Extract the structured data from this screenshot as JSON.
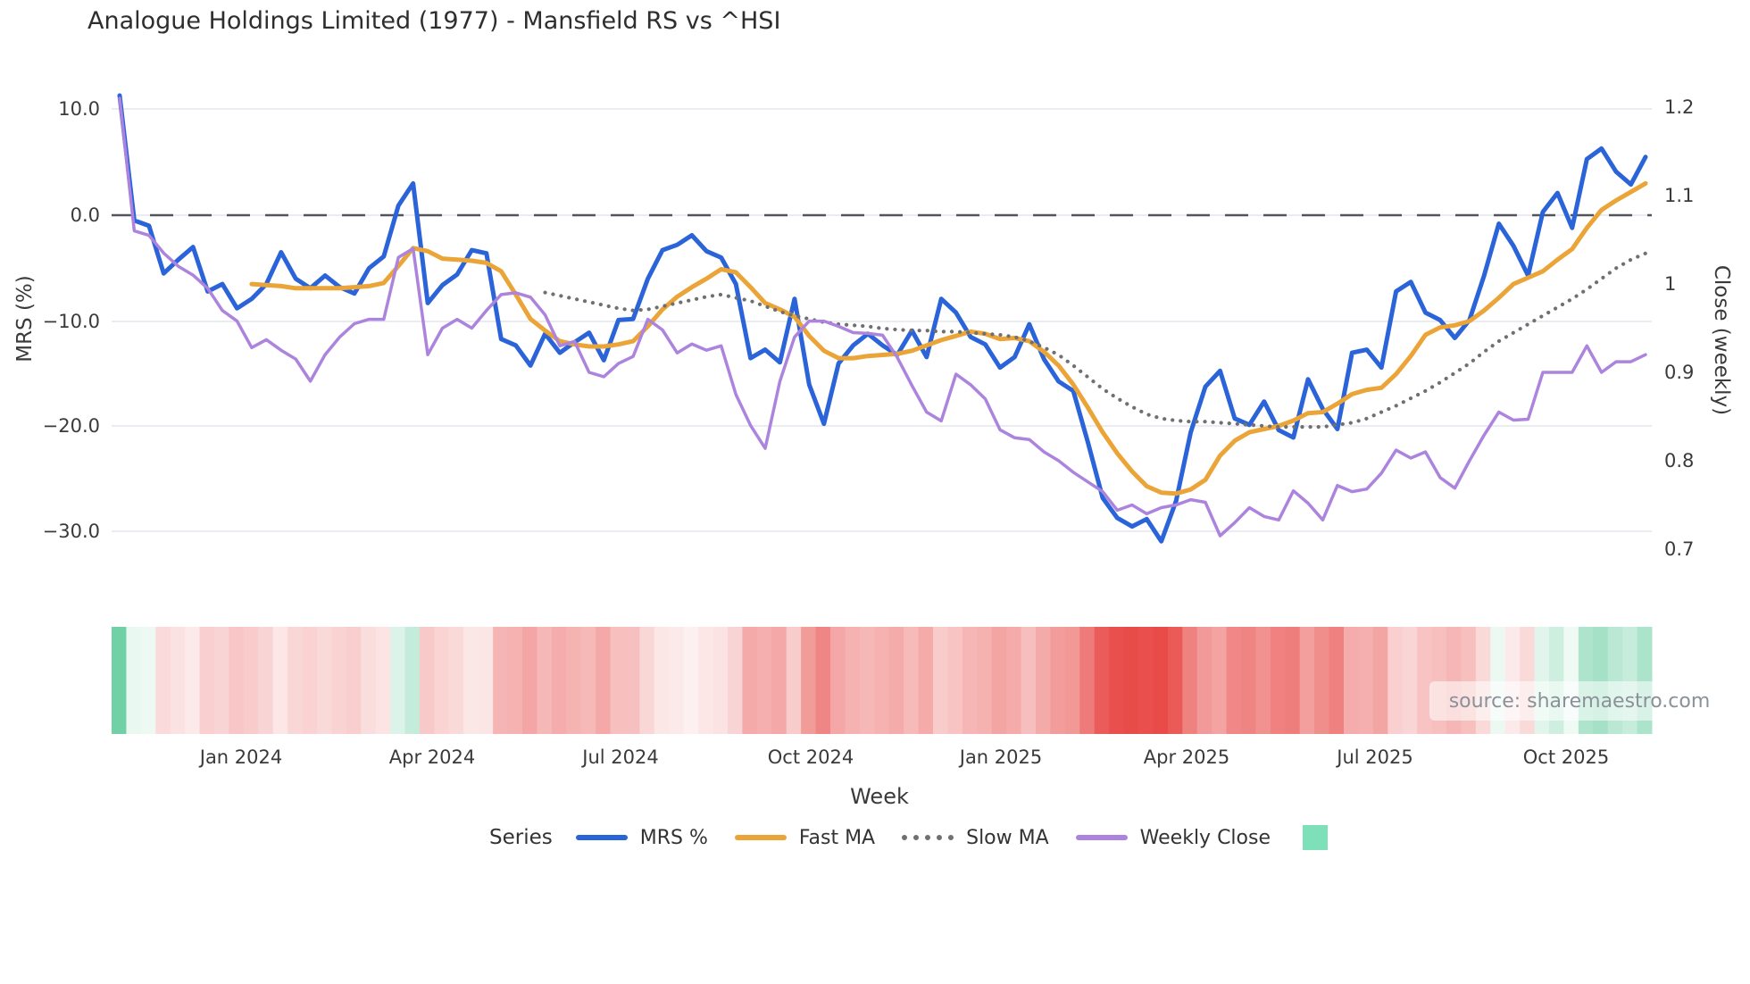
{
  "source": {
    "text": "source: sharemaestro.com"
  },
  "legend": {
    "title": "Series",
    "items": [
      {
        "label": "MRS %",
        "color": "#2b63d8",
        "style": "solid"
      },
      {
        "label": "Fast MA",
        "color": "#eba437",
        "style": "solid"
      },
      {
        "label": "Slow MA",
        "color": "#707070",
        "style": "dotted"
      },
      {
        "label": "Weekly Close",
        "color": "#ac84de",
        "style": "solid"
      }
    ],
    "heatmap_swatch_color": "#7de0b8"
  },
  "chart_data": {
    "type": "line",
    "title": "Analogue Holdings Limited (1977) - Mansfield RS vs ^HSI",
    "x_axis": {
      "label": "Week",
      "tick_labels": [
        "Jan 2024",
        "Apr 2024",
        "Jul 2024",
        "Oct 2024",
        "Jan 2025",
        "Apr 2025",
        "Jul 2025",
        "Oct 2025"
      ]
    },
    "y_left": {
      "label": "MRS (%)",
      "tick_labels": [
        "10.0",
        "0.0",
        "−10.0",
        "−20.0",
        "−30.0"
      ],
      "tick_values": [
        10,
        0,
        -10,
        -20,
        -30
      ],
      "range": [
        -33,
        12.5
      ],
      "zero_line": 0
    },
    "y_right": {
      "label": "Close (weekly)",
      "tick_labels": [
        "1.2",
        "1.1",
        "1",
        "0.9",
        "0.8",
        "0.7"
      ],
      "tick_values": [
        1.2,
        1.1,
        1.0,
        0.9,
        0.8,
        0.7
      ],
      "range": [
        0.69,
        1.22
      ]
    },
    "weeks_total": 105,
    "series": [
      {
        "name": "MRS %",
        "axis": "left",
        "color": "#2b63d8",
        "style": "solid",
        "width": 5,
        "start_week": 0,
        "values": [
          11.3,
          -0.5,
          -1.0,
          -5.5,
          -4.2,
          -3.0,
          -7.2,
          -6.5,
          -8.8,
          -7.9,
          -6.5,
          -3.5,
          -6.0,
          -6.9,
          -5.7,
          -6.8,
          -7.4,
          -5.0,
          -3.9,
          0.9,
          3.0,
          -8.3,
          -6.6,
          -5.6,
          -3.3,
          -3.6,
          -11.7,
          -12.3,
          -14.2,
          -11.2,
          -13.0,
          -12.0,
          -11.1,
          -13.7,
          -9.9,
          -9.8,
          -6.0,
          -3.3,
          -2.8,
          -1.9,
          -3.4,
          -4.0,
          -6.5,
          -13.5,
          -12.7,
          -13.9,
          -7.9,
          -16.0,
          -19.7,
          -14.0,
          -12.3,
          -11.2,
          -12.3,
          -13.2,
          -10.9,
          -13.4,
          -7.9,
          -9.2,
          -11.5,
          -12.2,
          -14.4,
          -13.4,
          -10.3,
          -13.6,
          -15.7,
          -16.6,
          -21.5,
          -26.7,
          -28.6,
          -29.4,
          -28.7,
          -30.8,
          -27.0,
          -20.5,
          -16.2,
          -14.7,
          -19.2,
          -19.8,
          -17.6,
          -20.3,
          -21.0,
          -15.5,
          -18.3,
          -20.2,
          -13.0,
          -12.7,
          -14.4,
          -7.2,
          -6.3,
          -9.2,
          -9.9,
          -11.6,
          -9.9,
          -5.7,
          -0.8,
          -2.9,
          -5.7,
          0.3,
          2.1,
          -1.2,
          5.3,
          6.3,
          4.1,
          2.9,
          5.5
        ]
      },
      {
        "name": "Fast MA",
        "axis": "left",
        "color": "#eba437",
        "style": "solid",
        "width": 5,
        "start_week": 9,
        "values": [
          -6.5,
          -6.6,
          -6.7,
          -6.9,
          -6.9,
          -6.9,
          -6.9,
          -6.8,
          -6.7,
          -6.4,
          -4.8,
          -3.1,
          -3.4,
          -4.1,
          -4.2,
          -4.3,
          -4.5,
          -5.3,
          -7.5,
          -9.8,
          -10.9,
          -11.9,
          -12.2,
          -12.4,
          -12.4,
          -12.2,
          -11.9,
          -10.5,
          -8.9,
          -7.7,
          -6.8,
          -6.0,
          -5.1,
          -5.4,
          -6.8,
          -8.3,
          -8.9,
          -9.6,
          -11.4,
          -12.8,
          -13.5,
          -13.5,
          -13.3,
          -13.2,
          -13.1,
          -12.8,
          -12.3,
          -11.8,
          -11.4,
          -11.0,
          -11.2,
          -11.7,
          -11.6,
          -11.9,
          -12.9,
          -14.2,
          -16.0,
          -18.2,
          -20.5,
          -22.5,
          -24.2,
          -25.6,
          -26.2,
          -26.3,
          -25.9,
          -25.0,
          -22.7,
          -21.3,
          -20.5,
          -20.2,
          -19.9,
          -19.4,
          -18.7,
          -18.6,
          -17.8,
          -16.9,
          -16.5,
          -16.3,
          -15.0,
          -13.3,
          -11.3,
          -10.6,
          -10.4,
          -10.0,
          -9.0,
          -7.8,
          -6.5,
          -5.9,
          -5.3,
          -4.2,
          -3.2,
          -1.2,
          0.5,
          1.4,
          2.2,
          3.0
        ]
      },
      {
        "name": "Slow MA",
        "axis": "left",
        "color": "#707070",
        "style": "dotted",
        "width": 4.2,
        "start_week": 29,
        "values": [
          -7.3,
          -7.6,
          -7.9,
          -8.2,
          -8.5,
          -8.8,
          -9.0,
          -8.9,
          -8.6,
          -8.3,
          -8.0,
          -7.7,
          -7.5,
          -7.8,
          -8.1,
          -8.6,
          -9.1,
          -9.5,
          -9.8,
          -10.1,
          -10.3,
          -10.4,
          -10.5,
          -10.7,
          -10.8,
          -10.9,
          -10.9,
          -11.0,
          -11.0,
          -11.1,
          -11.2,
          -11.3,
          -11.5,
          -11.9,
          -12.5,
          -13.2,
          -14.2,
          -15.3,
          -16.4,
          -17.3,
          -18.1,
          -18.8,
          -19.2,
          -19.4,
          -19.5,
          -19.5,
          -19.6,
          -19.7,
          -19.8,
          -19.9,
          -20.0,
          -20.0,
          -20.0,
          -20.0,
          -19.8,
          -19.6,
          -19.2,
          -18.6,
          -18.0,
          -17.3,
          -16.6,
          -15.8,
          -14.9,
          -14.0,
          -12.9,
          -11.9,
          -11.1,
          -10.3,
          -9.5,
          -8.7,
          -7.9,
          -7.0,
          -6.0,
          -5.0,
          -4.2,
          -3.6
        ]
      },
      {
        "name": "Weekly Close",
        "axis": "right",
        "color": "#ac84de",
        "style": "solid",
        "width": 3.5,
        "start_week": 0,
        "values": [
          1.21,
          1.06,
          1.055,
          1.035,
          1.02,
          1.01,
          0.995,
          0.97,
          0.958,
          0.928,
          0.937,
          0.925,
          0.915,
          0.89,
          0.92,
          0.94,
          0.955,
          0.96,
          0.96,
          1.03,
          1.04,
          0.92,
          0.95,
          0.96,
          0.95,
          0.97,
          0.988,
          0.99,
          0.985,
          0.965,
          0.93,
          0.935,
          0.9,
          0.895,
          0.91,
          0.918,
          0.96,
          0.948,
          0.922,
          0.932,
          0.925,
          0.93,
          0.875,
          0.84,
          0.814,
          0.89,
          0.94,
          0.958,
          0.958,
          0.952,
          0.945,
          0.944,
          0.942,
          0.917,
          0.885,
          0.855,
          0.845,
          0.898,
          0.886,
          0.87,
          0.835,
          0.826,
          0.824,
          0.81,
          0.8,
          0.787,
          0.776,
          0.765,
          0.744,
          0.75,
          0.74,
          0.747,
          0.75,
          0.756,
          0.753,
          0.715,
          0.73,
          0.747,
          0.737,
          0.733,
          0.766,
          0.752,
          0.733,
          0.772,
          0.765,
          0.768,
          0.786,
          0.812,
          0.803,
          0.81,
          0.781,
          0.769,
          0.8,
          0.829,
          0.855,
          0.846,
          0.847,
          0.9,
          0.9,
          0.9,
          0.93,
          0.9,
          0.912,
          0.912,
          0.92
        ]
      }
    ],
    "heatmap_strip": {
      "based_on": "MRS %",
      "neutral_value": -1.5,
      "positive_color": "#6fcfa5",
      "positive_light": "#f3fbf7",
      "negative_color": "#e84b48",
      "negative_light": "#fdf2f2",
      "positive_saturation_at": 11.5,
      "negative_saturation_at": -29.5
    },
    "grid": true,
    "legend_position": "bottom"
  }
}
